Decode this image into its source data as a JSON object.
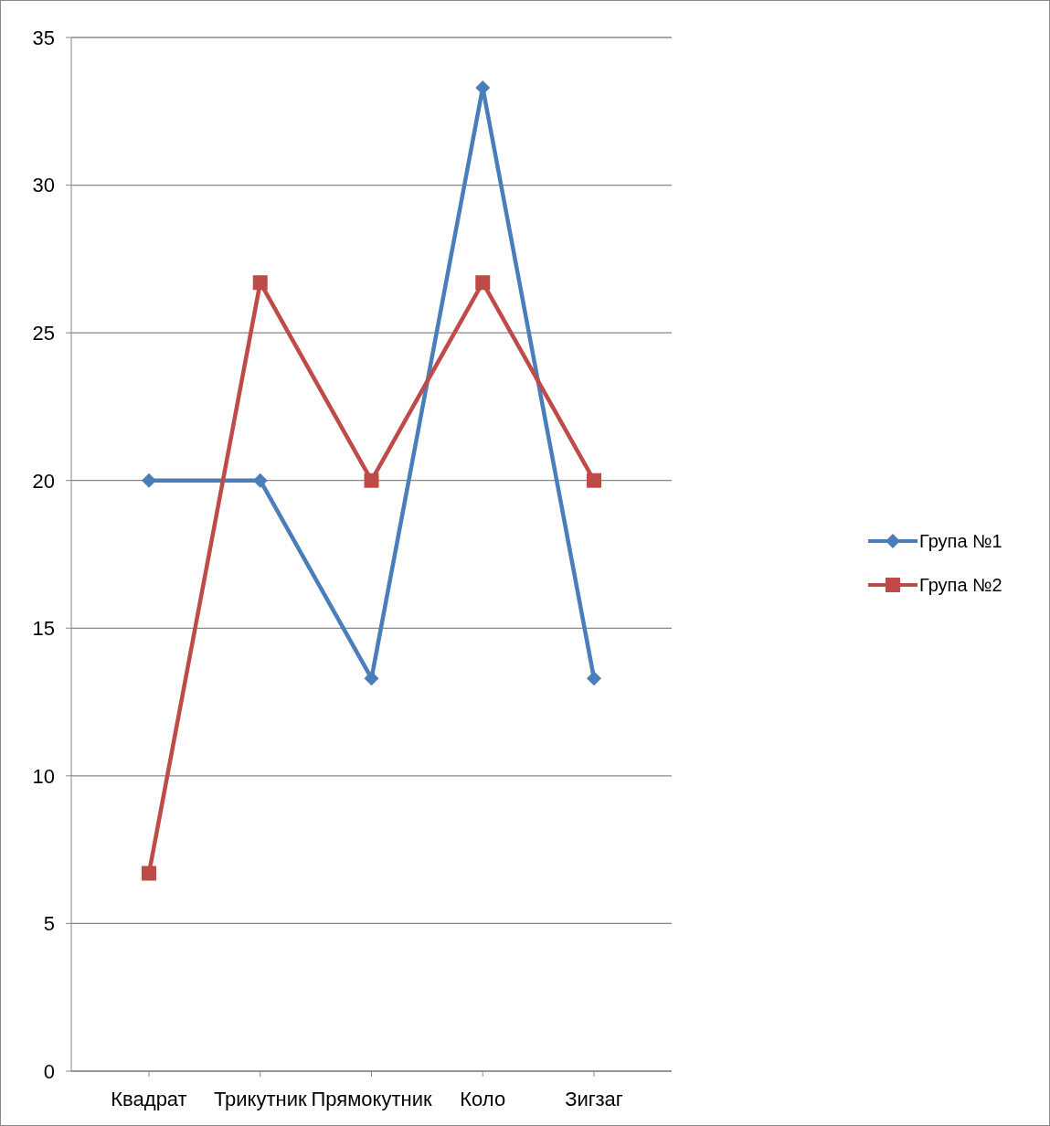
{
  "chart_data": {
    "type": "line",
    "categories": [
      "Квадрат",
      "Трикутник",
      "Прямокутник",
      "Коло",
      "Зигзаг"
    ],
    "series": [
      {
        "name": "Група №1",
        "color": "#4a7ebb",
        "marker": "diamond",
        "values": [
          20,
          20,
          13.3,
          33.3,
          13.3
        ]
      },
      {
        "name": "Група №2",
        "color": "#be4b48",
        "marker": "square",
        "values": [
          6.7,
          26.7,
          20,
          26.7,
          20
        ]
      }
    ],
    "ylim": [
      0,
      35
    ],
    "yticks": [
      0,
      5,
      10,
      15,
      20,
      25,
      30,
      35
    ],
    "grid": "y",
    "legend": "right"
  }
}
